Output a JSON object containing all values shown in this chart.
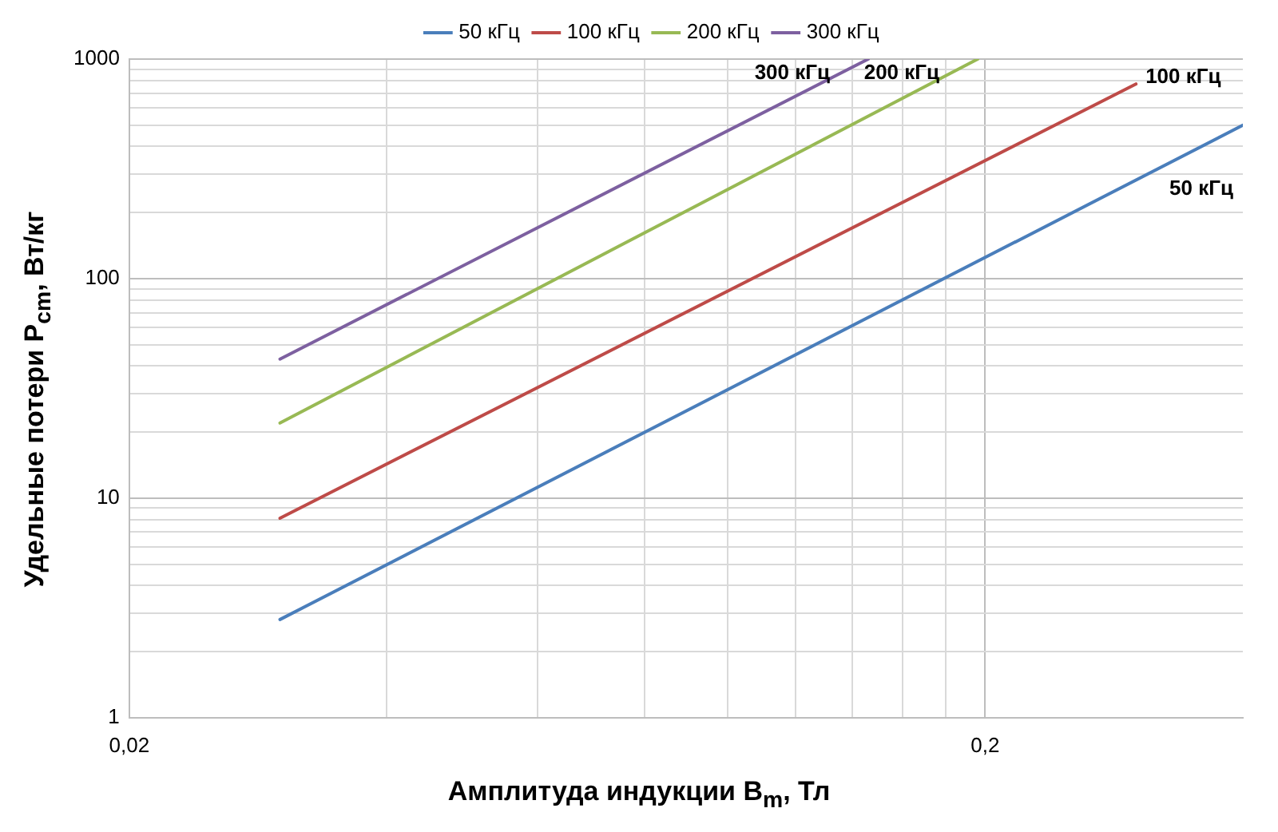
{
  "chart_data": {
    "type": "line",
    "xlabel": "Амплитуда индукции B$_{m}$, Тл",
    "ylabel": "Удельные потери P$_{cm}$, Вт/кг",
    "log": "xy",
    "grid": true,
    "legend": "top",
    "marker": "none",
    "line_style": "solid",
    "xlim": [
      0.02,
      0.4
    ],
    "ylim": [
      1,
      1000
    ],
    "xticks": [
      {
        "value": 0.02,
        "label": "0,02"
      },
      {
        "value": 0.04,
        "label": null
      },
      {
        "value": 0.06,
        "label": null
      },
      {
        "value": 0.08,
        "label": null
      },
      {
        "value": 0.1,
        "label": null
      },
      {
        "value": 0.12,
        "label": null
      },
      {
        "value": 0.14,
        "label": null
      },
      {
        "value": 0.16,
        "label": null
      },
      {
        "value": 0.18,
        "label": null
      },
      {
        "value": 0.2,
        "label": "0,2"
      }
    ],
    "yticks": [
      1,
      {
        "value": 2,
        "label": null
      },
      {
        "value": 3,
        "label": null
      },
      {
        "value": 4,
        "label": null
      },
      {
        "value": 5,
        "label": null
      },
      {
        "value": 6,
        "label": null
      },
      {
        "value": 7,
        "label": null
      },
      {
        "value": 8,
        "label": null
      },
      {
        "value": 9,
        "label": null
      },
      10,
      {
        "value": 20,
        "label": null
      },
      {
        "value": 30,
        "label": null
      },
      {
        "value": 40,
        "label": null
      },
      {
        "value": 50,
        "label": null
      },
      {
        "value": 60,
        "label": null
      },
      {
        "value": 70,
        "label": null
      },
      {
        "value": 80,
        "label": null
      },
      {
        "value": 90,
        "label": null
      },
      100,
      {
        "value": 200,
        "label": null
      },
      {
        "value": 300,
        "label": null
      },
      {
        "value": 400,
        "label": null
      },
      {
        "value": 500,
        "label": null
      },
      {
        "value": 600,
        "label": null
      },
      {
        "value": 700,
        "label": null
      },
      {
        "value": 800,
        "label": null
      },
      {
        "value": 900,
        "label": null
      },
      1000
    ],
    "series": [
      {
        "name": "50 кГц",
        "color": "#4a7ebb",
        "x": [
          0.03,
          0.4
        ],
        "values": [
          2.8,
          500
        ]
      },
      {
        "name": "100 кГц",
        "color": "#be4b48",
        "x": [
          0.03,
          0.3
        ],
        "values": [
          8.1,
          770
        ]
      },
      {
        "name": "200 кГц",
        "color": "#98b954",
        "x": [
          0.03,
          0.196
        ],
        "values": [
          22,
          1000
        ]
      },
      {
        "name": "300 кГц",
        "color": "#7d60a0",
        "x": [
          0.03,
          0.146
        ],
        "values": [
          43,
          1000
        ]
      }
    ]
  }
}
